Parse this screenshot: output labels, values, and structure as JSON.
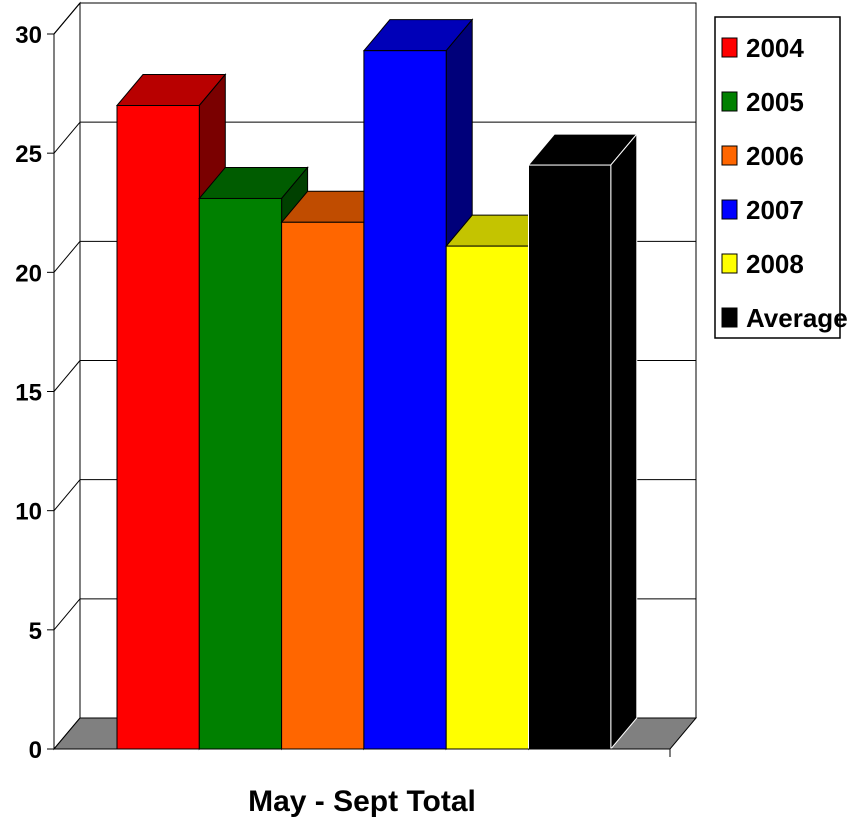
{
  "chart_data": {
    "type": "bar",
    "categories": [
      "May - Sept Total"
    ],
    "series": [
      {
        "name": "2004",
        "values": [
          27
        ],
        "color": "#ff0000",
        "top_color": "#b80000",
        "side_color": "#7a0000"
      },
      {
        "name": "2005",
        "values": [
          23.1
        ],
        "color": "#008000",
        "top_color": "#005c00",
        "side_color": "#004000"
      },
      {
        "name": "2006",
        "values": [
          22.1
        ],
        "color": "#ff6600",
        "top_color": "#c04c00",
        "side_color": "#8a3700"
      },
      {
        "name": "2007",
        "values": [
          29.3
        ],
        "color": "#0000ff",
        "top_color": "#0000b8",
        "side_color": "#00007a"
      },
      {
        "name": "2008",
        "values": [
          21.1
        ],
        "color": "#ffff00",
        "top_color": "#c4c400",
        "side_color": "#8a8a00"
      },
      {
        "name": "Average",
        "values": [
          24.5
        ],
        "color": "#000000",
        "top_color": "#000000",
        "side_color": "#000000"
      }
    ],
    "y_ticks": [
      "0",
      "5",
      "10",
      "15",
      "20",
      "25",
      "30"
    ],
    "xlabel": "May - Sept Total",
    "ylabel": "",
    "ylim": [
      0,
      30
    ],
    "grid": true,
    "legend": "right"
  }
}
